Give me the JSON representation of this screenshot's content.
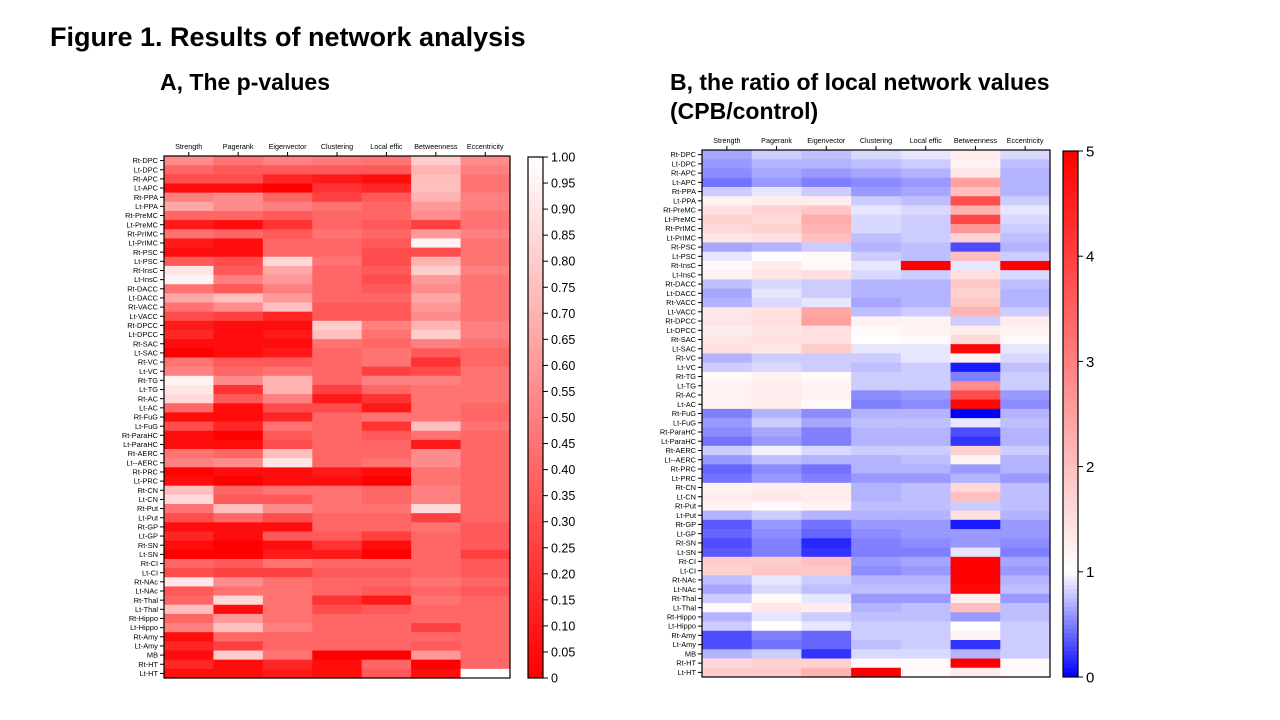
{
  "figure_title": "Figure 1. Results of network analysis",
  "panel_a_title": "A, The p-values",
  "panel_b_title": "B, the ratio of local network values (CPB/control)",
  "chart_data": [
    {
      "type": "heatmap",
      "title": "A, The p-values",
      "columns": [
        "Strength",
        "Pagerank",
        "Eigenvector",
        "Clustering",
        "Local effic",
        "Betweenness",
        "Eccentricity"
      ],
      "rows": [
        "Rt-DPC",
        "Lt-DPC",
        "Rt-APC",
        "Lt-APC",
        "Rt-PPA",
        "Lt-PPA",
        "Rt-PreMC",
        "Lt-PreMC",
        "Rt-PrIMC",
        "Lt-PrIMC",
        "Rt-PSC",
        "Lt-PSC",
        "Rt-InsC",
        "Lt-InsC",
        "Rt-DACC",
        "Lt-DACC",
        "Rt-VACC",
        "Lt-VACC",
        "Rt-DPCC",
        "Lt-DPCC",
        "Rt-SAC",
        "Lt-SAC",
        "Rt-VC",
        "Lt-VC",
        "Rt-TG",
        "Lt-TG",
        "Rt-AC",
        "Lt-AC",
        "Rt-FuG",
        "Lt-FuG",
        "Rt-ParaHC",
        "Lt-ParaHC",
        "Rt-AERC",
        "Lt--AERC",
        "Rt-PRC",
        "Lt-PRC",
        "Rt-CN",
        "Lt-CN",
        "Rt-Put",
        "Lt-Put",
        "Rt-GP",
        "Lt-GP",
        "Rt-SN",
        "Lt-SN",
        "Rt-CI",
        "Lt-CI",
        "Rt-NAc",
        "Lt-NAc",
        "Rt-Thal",
        "Lt-Thal",
        "Rt-Hippo",
        "Lt-Hippo",
        "Rt-Amy",
        "Lt-Amy",
        "MB",
        "Rt-HT",
        "Lt-HT"
      ],
      "colorbar": {
        "min": 0,
        "max": 1,
        "ticks": [
          "1.00",
          "0.95",
          "0.90",
          "0.85",
          "0.80",
          "0.75",
          "0.70",
          "0.65",
          "0.60",
          "0.55",
          "0.50",
          "0.45",
          "0.40",
          "0.35",
          "0.30",
          "0.25",
          "0.20",
          "0.15",
          "0.10",
          "0.05",
          "0"
        ],
        "low_color": "#ff0000",
        "high_color": "#ffffff"
      },
      "values": [
        [
          0.55,
          0.45,
          0.5,
          0.48,
          0.45,
          0.8,
          0.55
        ],
        [
          0.4,
          0.35,
          0.35,
          0.35,
          0.35,
          0.7,
          0.5
        ],
        [
          0.3,
          0.3,
          0.15,
          0.1,
          0.05,
          0.75,
          0.45
        ],
        [
          0.05,
          0.05,
          0.0,
          0.2,
          0.15,
          0.75,
          0.45
        ],
        [
          0.5,
          0.55,
          0.4,
          0.25,
          0.35,
          0.7,
          0.5
        ],
        [
          0.65,
          0.55,
          0.5,
          0.45,
          0.4,
          0.6,
          0.5
        ],
        [
          0.4,
          0.4,
          0.35,
          0.4,
          0.4,
          0.55,
          0.45
        ],
        [
          0.1,
          0.05,
          0.2,
          0.4,
          0.35,
          0.25,
          0.45
        ],
        [
          0.45,
          0.4,
          0.35,
          0.45,
          0.4,
          0.6,
          0.5
        ],
        [
          0.1,
          0.05,
          0.4,
          0.4,
          0.35,
          0.95,
          0.45
        ],
        [
          0.05,
          0.05,
          0.4,
          0.4,
          0.3,
          0.3,
          0.45
        ],
        [
          0.35,
          0.3,
          0.85,
          0.45,
          0.3,
          0.7,
          0.45
        ],
        [
          0.9,
          0.35,
          0.65,
          0.4,
          0.35,
          0.8,
          0.5
        ],
        [
          0.95,
          0.5,
          0.6,
          0.4,
          0.3,
          0.6,
          0.45
        ],
        [
          0.45,
          0.35,
          0.5,
          0.4,
          0.35,
          0.55,
          0.45
        ],
        [
          0.65,
          0.75,
          0.6,
          0.4,
          0.4,
          0.65,
          0.45
        ],
        [
          0.45,
          0.55,
          0.75,
          0.35,
          0.35,
          0.6,
          0.45
        ],
        [
          0.3,
          0.25,
          0.15,
          0.35,
          0.35,
          0.55,
          0.45
        ],
        [
          0.1,
          0.05,
          0.05,
          0.8,
          0.5,
          0.7,
          0.5
        ],
        [
          0.15,
          0.05,
          0.1,
          0.75,
          0.45,
          0.8,
          0.5
        ],
        [
          0.05,
          0.05,
          0.05,
          0.45,
          0.4,
          0.5,
          0.45
        ],
        [
          0.0,
          0.05,
          0.1,
          0.4,
          0.45,
          0.35,
          0.4
        ],
        [
          0.45,
          0.35,
          0.35,
          0.4,
          0.45,
          0.2,
          0.4
        ],
        [
          0.5,
          0.4,
          0.45,
          0.4,
          0.25,
          0.3,
          0.45
        ],
        [
          0.95,
          0.55,
          0.7,
          0.4,
          0.5,
          0.5,
          0.45
        ],
        [
          0.9,
          0.2,
          0.7,
          0.25,
          0.4,
          0.45,
          0.45
        ],
        [
          0.85,
          0.35,
          0.5,
          0.1,
          0.2,
          0.45,
          0.45
        ],
        [
          0.4,
          0.05,
          0.3,
          0.3,
          0.1,
          0.45,
          0.4
        ],
        [
          0.05,
          0.05,
          0.15,
          0.4,
          0.45,
          0.45,
          0.4
        ],
        [
          0.3,
          0.15,
          0.45,
          0.4,
          0.2,
          0.75,
          0.45
        ],
        [
          0.05,
          0.0,
          0.35,
          0.4,
          0.35,
          0.45,
          0.4
        ],
        [
          0.05,
          0.05,
          0.3,
          0.4,
          0.4,
          0.1,
          0.4
        ],
        [
          0.45,
          0.4,
          0.75,
          0.4,
          0.4,
          0.55,
          0.4
        ],
        [
          0.5,
          0.55,
          0.9,
          0.4,
          0.45,
          0.55,
          0.4
        ],
        [
          0.0,
          0.05,
          0.05,
          0.1,
          0.05,
          0.45,
          0.4
        ],
        [
          0.05,
          0.0,
          0.05,
          0.05,
          0.0,
          0.45,
          0.4
        ],
        [
          0.75,
          0.4,
          0.45,
          0.45,
          0.4,
          0.5,
          0.4
        ],
        [
          0.85,
          0.35,
          0.35,
          0.45,
          0.4,
          0.5,
          0.4
        ],
        [
          0.45,
          0.75,
          0.55,
          0.45,
          0.45,
          0.85,
          0.4
        ],
        [
          0.3,
          0.4,
          0.3,
          0.4,
          0.4,
          0.25,
          0.4
        ],
        [
          0.05,
          0.05,
          0.05,
          0.4,
          0.4,
          0.45,
          0.35
        ],
        [
          0.15,
          0.05,
          0.35,
          0.35,
          0.25,
          0.4,
          0.35
        ],
        [
          0.05,
          0.0,
          0.05,
          0.2,
          0.05,
          0.4,
          0.35
        ],
        [
          0.0,
          0.0,
          0.1,
          0.1,
          0.0,
          0.4,
          0.25
        ],
        [
          0.4,
          0.35,
          0.45,
          0.4,
          0.4,
          0.4,
          0.35
        ],
        [
          0.3,
          0.25,
          0.25,
          0.35,
          0.35,
          0.4,
          0.35
        ],
        [
          0.9,
          0.55,
          0.45,
          0.4,
          0.4,
          0.45,
          0.4
        ],
        [
          0.35,
          0.45,
          0.45,
          0.4,
          0.35,
          0.4,
          0.35
        ],
        [
          0.4,
          0.85,
          0.45,
          0.2,
          0.1,
          0.45,
          0.4
        ],
        [
          0.75,
          0.05,
          0.45,
          0.3,
          0.35,
          0.4,
          0.4
        ],
        [
          0.4,
          0.6,
          0.45,
          0.4,
          0.4,
          0.4,
          0.4
        ],
        [
          0.5,
          0.75,
          0.5,
          0.4,
          0.4,
          0.25,
          0.4
        ],
        [
          0.05,
          0.4,
          0.4,
          0.4,
          0.4,
          0.4,
          0.4
        ],
        [
          0.15,
          0.25,
          0.4,
          0.4,
          0.4,
          0.35,
          0.4
        ],
        [
          0.05,
          0.8,
          0.45,
          0.0,
          0.0,
          0.6,
          0.4
        ],
        [
          0.15,
          0.05,
          0.15,
          0.05,
          0.4,
          0.0,
          0.4
        ],
        [
          0.05,
          0.05,
          0.1,
          0.05,
          0.35,
          0.05,
          1.0
        ]
      ]
    },
    {
      "type": "heatmap",
      "title": "B, the ratio of local network values (CPB/control)",
      "columns": [
        "Strength",
        "Pagerank",
        "Eigenvector",
        "Clustering",
        "Local effic",
        "Betweenness",
        "Eccentricity"
      ],
      "rows": [
        "Rt-DPC",
        "Lt-DPC",
        "Rt-APC",
        "Lt-APC",
        "Rt-PPA",
        "Lt-PPA",
        "Rt-PreMC",
        "Lt-PreMC",
        "Rt-PrIMC",
        "Lt-PrIMC",
        "Rt-PSC",
        "Lt-PSC",
        "Rt-InsC",
        "Lt-InsC",
        "Rt-DACC",
        "Lt-DACC",
        "Rt-VACC",
        "Lt-VACC",
        "Rt-DPCC",
        "Lt-DPCC",
        "Rt-SAC",
        "Lt-SAC",
        "Rt-VC",
        "Lt-VC",
        "Rt-TG",
        "Lt-TG",
        "Rt-AC",
        "Lt-AC",
        "Rt-FuG",
        "Lt-FuG",
        "Rt-ParaHC",
        "Lt-ParaHC",
        "Rt-AERC",
        "Lt--AERC",
        "Rt-PRC",
        "Lt-PRC",
        "Rt-CN",
        "Lt-CN",
        "Rt-Put",
        "Lt-Put",
        "Rt-GP",
        "Lt-GP",
        "Rt-SN",
        "Lt-SN",
        "Rt-CI",
        "Lt-CI",
        "Rt-NAc",
        "Lt-NAc",
        "Rt-Thal",
        "Lt-Thal",
        "Rt-Hippo",
        "Lt-Hippo",
        "Rt-Amy",
        "Lt-Amy",
        "MB",
        "Rt-HT",
        "Lt-HT"
      ],
      "colorbar": {
        "min": 0,
        "max": 5,
        "ticks": [
          "5",
          "4",
          "3",
          "2",
          "1",
          "0"
        ],
        "low_color": "#0000ff",
        "mid_color": "#ffffff",
        "mid_value": 1,
        "high_color": "#ff0000"
      },
      "values": [
        [
          0.65,
          0.8,
          0.75,
          0.85,
          0.9,
          1.3,
          0.85
        ],
        [
          0.6,
          0.7,
          0.7,
          0.75,
          0.8,
          1.2,
          0.75
        ],
        [
          0.55,
          0.65,
          0.6,
          0.65,
          0.7,
          1.4,
          0.7
        ],
        [
          0.45,
          0.6,
          0.5,
          0.55,
          0.6,
          2.5,
          0.7
        ],
        [
          0.8,
          0.9,
          0.8,
          0.6,
          0.65,
          2.0,
          0.7
        ],
        [
          1.2,
          1.3,
          1.3,
          0.8,
          0.75,
          3.8,
          0.8
        ],
        [
          1.5,
          1.7,
          1.9,
          0.9,
          0.85,
          2.2,
          0.9
        ],
        [
          1.7,
          1.6,
          2.3,
          0.85,
          0.8,
          3.9,
          0.85
        ],
        [
          1.6,
          1.7,
          2.2,
          0.85,
          0.8,
          2.6,
          0.8
        ],
        [
          1.4,
          1.5,
          2.0,
          0.75,
          0.8,
          1.7,
          0.75
        ],
        [
          0.65,
          0.7,
          0.8,
          0.7,
          0.75,
          0.3,
          0.7
        ],
        [
          0.9,
          1.0,
          1.1,
          0.8,
          0.75,
          2.0,
          0.8
        ],
        [
          1.1,
          1.3,
          1.1,
          0.9,
          5.0,
          0.9,
          5.0
        ],
        [
          1.2,
          1.4,
          1.5,
          0.85,
          0.8,
          1.5,
          0.85
        ],
        [
          0.75,
          0.85,
          0.8,
          0.7,
          0.7,
          1.9,
          0.75
        ],
        [
          0.65,
          0.9,
          0.8,
          0.7,
          0.7,
          1.7,
          0.7
        ],
        [
          0.7,
          0.85,
          0.9,
          0.65,
          0.7,
          1.9,
          0.7
        ],
        [
          1.4,
          1.5,
          2.4,
          0.75,
          0.8,
          2.2,
          0.8
        ],
        [
          1.4,
          1.5,
          2.5,
          1.2,
          1.2,
          0.8,
          1.3
        ],
        [
          1.3,
          1.4,
          1.5,
          1.1,
          1.2,
          1.3,
          1.2
        ],
        [
          1.4,
          1.5,
          1.5,
          1.0,
          1.1,
          1.6,
          1.1
        ],
        [
          1.5,
          1.4,
          1.8,
          0.9,
          0.9,
          4.9,
          0.9
        ],
        [
          0.7,
          0.8,
          0.8,
          0.8,
          0.9,
          1.2,
          0.85
        ],
        [
          0.8,
          0.85,
          0.8,
          0.75,
          0.8,
          0.1,
          0.75
        ],
        [
          1.1,
          1.2,
          1.1,
          0.8,
          0.8,
          0.5,
          0.8
        ],
        [
          1.2,
          1.3,
          1.2,
          0.8,
          0.8,
          2.8,
          0.8
        ],
        [
          1.2,
          1.3,
          1.2,
          0.55,
          0.6,
          3.8,
          0.6
        ],
        [
          1.2,
          1.3,
          1.1,
          0.5,
          0.55,
          4.9,
          0.55
        ],
        [
          0.5,
          0.7,
          0.55,
          0.7,
          0.7,
          0.0,
          0.7
        ],
        [
          0.6,
          0.8,
          0.65,
          0.75,
          0.75,
          0.9,
          0.75
        ],
        [
          0.55,
          0.65,
          0.5,
          0.7,
          0.7,
          0.3,
          0.7
        ],
        [
          0.45,
          0.6,
          0.5,
          0.7,
          0.7,
          0.2,
          0.7
        ],
        [
          0.8,
          0.95,
          0.85,
          0.8,
          0.8,
          1.7,
          0.8
        ],
        [
          0.6,
          0.75,
          0.7,
          0.7,
          0.75,
          1.2,
          0.7
        ],
        [
          0.4,
          0.55,
          0.45,
          0.7,
          0.7,
          0.6,
          0.7
        ],
        [
          0.45,
          0.6,
          0.5,
          0.6,
          0.6,
          0.7,
          0.6
        ],
        [
          1.2,
          1.3,
          1.3,
          0.7,
          0.75,
          1.6,
          0.75
        ],
        [
          1.3,
          1.4,
          1.3,
          0.7,
          0.75,
          2.0,
          0.75
        ],
        [
          1.2,
          1.1,
          1.2,
          0.75,
          0.75,
          0.8,
          0.75
        ],
        [
          0.7,
          0.8,
          0.7,
          0.7,
          0.7,
          1.5,
          0.7
        ],
        [
          0.35,
          0.6,
          0.45,
          0.6,
          0.6,
          0.1,
          0.6
        ],
        [
          0.4,
          0.55,
          0.4,
          0.55,
          0.6,
          0.6,
          0.6
        ],
        [
          0.3,
          0.5,
          0.15,
          0.5,
          0.55,
          0.6,
          0.55
        ],
        [
          0.35,
          0.5,
          0.2,
          0.5,
          0.5,
          0.9,
          0.5
        ],
        [
          1.8,
          1.8,
          2.0,
          0.6,
          0.65,
          5.0,
          0.65
        ],
        [
          1.7,
          1.9,
          1.9,
          0.55,
          0.6,
          5.0,
          0.6
        ],
        [
          0.75,
          0.9,
          0.8,
          0.7,
          0.7,
          5.0,
          0.7
        ],
        [
          0.65,
          0.85,
          0.75,
          0.75,
          0.75,
          4.9,
          0.75
        ],
        [
          0.8,
          1.1,
          0.9,
          0.6,
          0.6,
          1.3,
          0.6
        ],
        [
          1.1,
          1.4,
          1.3,
          0.7,
          0.75,
          2.0,
          0.75
        ],
        [
          0.7,
          0.9,
          0.8,
          0.75,
          0.75,
          0.6,
          0.75
        ],
        [
          0.8,
          1.0,
          0.9,
          0.8,
          0.8,
          1.0,
          0.8
        ],
        [
          0.3,
          0.5,
          0.4,
          0.8,
          0.8,
          1.2,
          0.8
        ],
        [
          0.3,
          0.45,
          0.4,
          0.75,
          0.8,
          0.2,
          0.8
        ],
        [
          0.7,
          0.8,
          0.2,
          0.85,
          0.85,
          0.7,
          0.8
        ],
        [
          1.6,
          1.7,
          1.7,
          1.1,
          1.1,
          5.0,
          1.1
        ],
        [
          1.8,
          1.8,
          2.2,
          5.0,
          1.1,
          1.3,
          1.1
        ]
      ]
    }
  ]
}
